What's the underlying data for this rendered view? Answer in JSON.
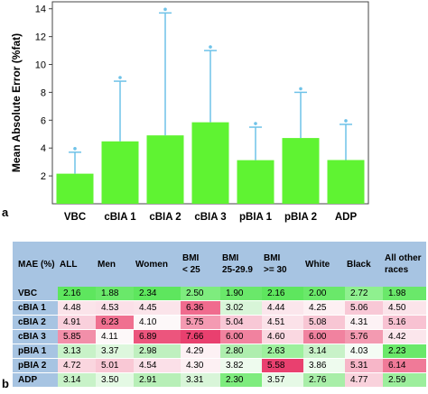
{
  "panel_labels": {
    "a": "a",
    "b": "b"
  },
  "chart_data": {
    "type": "bar",
    "ylabel": "Mean Absolute Error (%fat)",
    "xlabel": "",
    "title": "",
    "ylim": [
      0,
      14.5
    ],
    "yticks": [
      2,
      4,
      6,
      8,
      10,
      12,
      14
    ],
    "grid": false,
    "categories": [
      "VBC",
      "cBIA 1",
      "cBIA 2",
      "cBIA 3",
      "pBIA 1",
      "pBIA 2",
      "ADP"
    ],
    "values": [
      2.16,
      4.48,
      4.91,
      5.85,
      3.13,
      4.72,
      3.14
    ],
    "error_upper": [
      3.7,
      8.8,
      13.7,
      11.0,
      5.5,
      8.0,
      5.7
    ],
    "error_marker_y": [
      3.7,
      8.8,
      13.7,
      11.0,
      5.5,
      8.0,
      5.7
    ],
    "bar_color": "#5ff332",
    "error_color": "#6ec2e8"
  },
  "table": {
    "corner": "MAE (%)",
    "headers": [
      "ALL",
      "Men",
      "Women",
      "BMI < 25",
      "BMI 25-29.9",
      "BMI >= 30",
      "White",
      "Black",
      "All other races"
    ],
    "header_lines": [
      [
        "ALL"
      ],
      [
        "Men"
      ],
      [
        "Women"
      ],
      [
        "BMI",
        "< 25"
      ],
      [
        "BMI",
        "25-29.9"
      ],
      [
        "BMI",
        ">= 30"
      ],
      [
        "White"
      ],
      [
        "Black"
      ],
      [
        "All other",
        "races"
      ]
    ],
    "rows": [
      {
        "label": "VBC",
        "values": [
          "2.16",
          "1.88",
          "2.34",
          "2.50",
          "1.90",
          "2.16",
          "2.00",
          "2.72",
          "1.98"
        ],
        "colors": [
          "#5ee65e",
          "#6ae86a",
          "#5ee65e",
          "#7eec7e",
          "#6ae86a",
          "#5ee65e",
          "#6ae86a",
          "#8ff08f",
          "#6ae86a"
        ]
      },
      {
        "label": "cBIA 1",
        "values": [
          "4.48",
          "4.53",
          "4.45",
          "6.36",
          "3.02",
          "4.44",
          "4.25",
          "5.06",
          "4.50"
        ],
        "colors": [
          "#fbe4ea",
          "#fbe0e8",
          "#fbe4ea",
          "#f06b8e",
          "#d8f5d8",
          "#fbe6ec",
          "#fdf0f3",
          "#f8c8d6",
          "#fbe4ea"
        ]
      },
      {
        "label": "cBIA 2",
        "values": [
          "4.91",
          "6.23",
          "4.10",
          "5.75",
          "5.04",
          "4.51",
          "5.08",
          "4.31",
          "5.16"
        ],
        "colors": [
          "#f9d0dc",
          "#f07090",
          "#fdf8f9",
          "#f49ab2",
          "#f8c8d6",
          "#fbe2e9",
          "#f8c6d4",
          "#fdf2f5",
          "#f8c2d2"
        ]
      },
      {
        "label": "cBIA 3",
        "values": [
          "5.85",
          "4.11",
          "6.89",
          "7.66",
          "6.00",
          "4.60",
          "6.00",
          "5.76",
          "4.42"
        ],
        "colors": [
          "#f28fa9",
          "#fdf8f9",
          "#ec557d",
          "#e9406f",
          "#f1829f",
          "#fad8e1",
          "#f1829f",
          "#f39ab1",
          "#fbe6ec"
        ]
      },
      {
        "label": "pBIA 1",
        "values": [
          "3.13",
          "3.37",
          "2.98",
          "4.29",
          "2.80",
          "2.63",
          "3.14",
          "4.03",
          "2.23"
        ],
        "colors": [
          "#c8f2c8",
          "#ddf7dd",
          "#bff0bf",
          "#fdf1f4",
          "#aeeeae",
          "#9df09d",
          "#c8f2c8",
          "#f4fcf4",
          "#6ae86a"
        ]
      },
      {
        "label": "pBIA 2",
        "values": [
          "4.72",
          "5.01",
          "4.54",
          "4.30",
          "3.82",
          "5.58",
          "3.86",
          "5.31",
          "6.14"
        ],
        "colors": [
          "#fad6df",
          "#f9c8d5",
          "#fbe0e8",
          "#fdf0f3",
          "#eefbee",
          "#e9406f",
          "#eefbee",
          "#f7b6c8",
          "#f07a98"
        ]
      },
      {
        "label": "ADP",
        "values": [
          "3.14",
          "3.50",
          "2.91",
          "3.31",
          "2.30",
          "3.57",
          "2.76",
          "4.77",
          "2.59"
        ],
        "colors": [
          "#c8f2c8",
          "#e4f9e4",
          "#b7efb7",
          "#d8f5d8",
          "#7eec7e",
          "#e6f9e6",
          "#a8ee a8",
          "#f9d2dc",
          "#9cee9c"
        ]
      }
    ]
  }
}
